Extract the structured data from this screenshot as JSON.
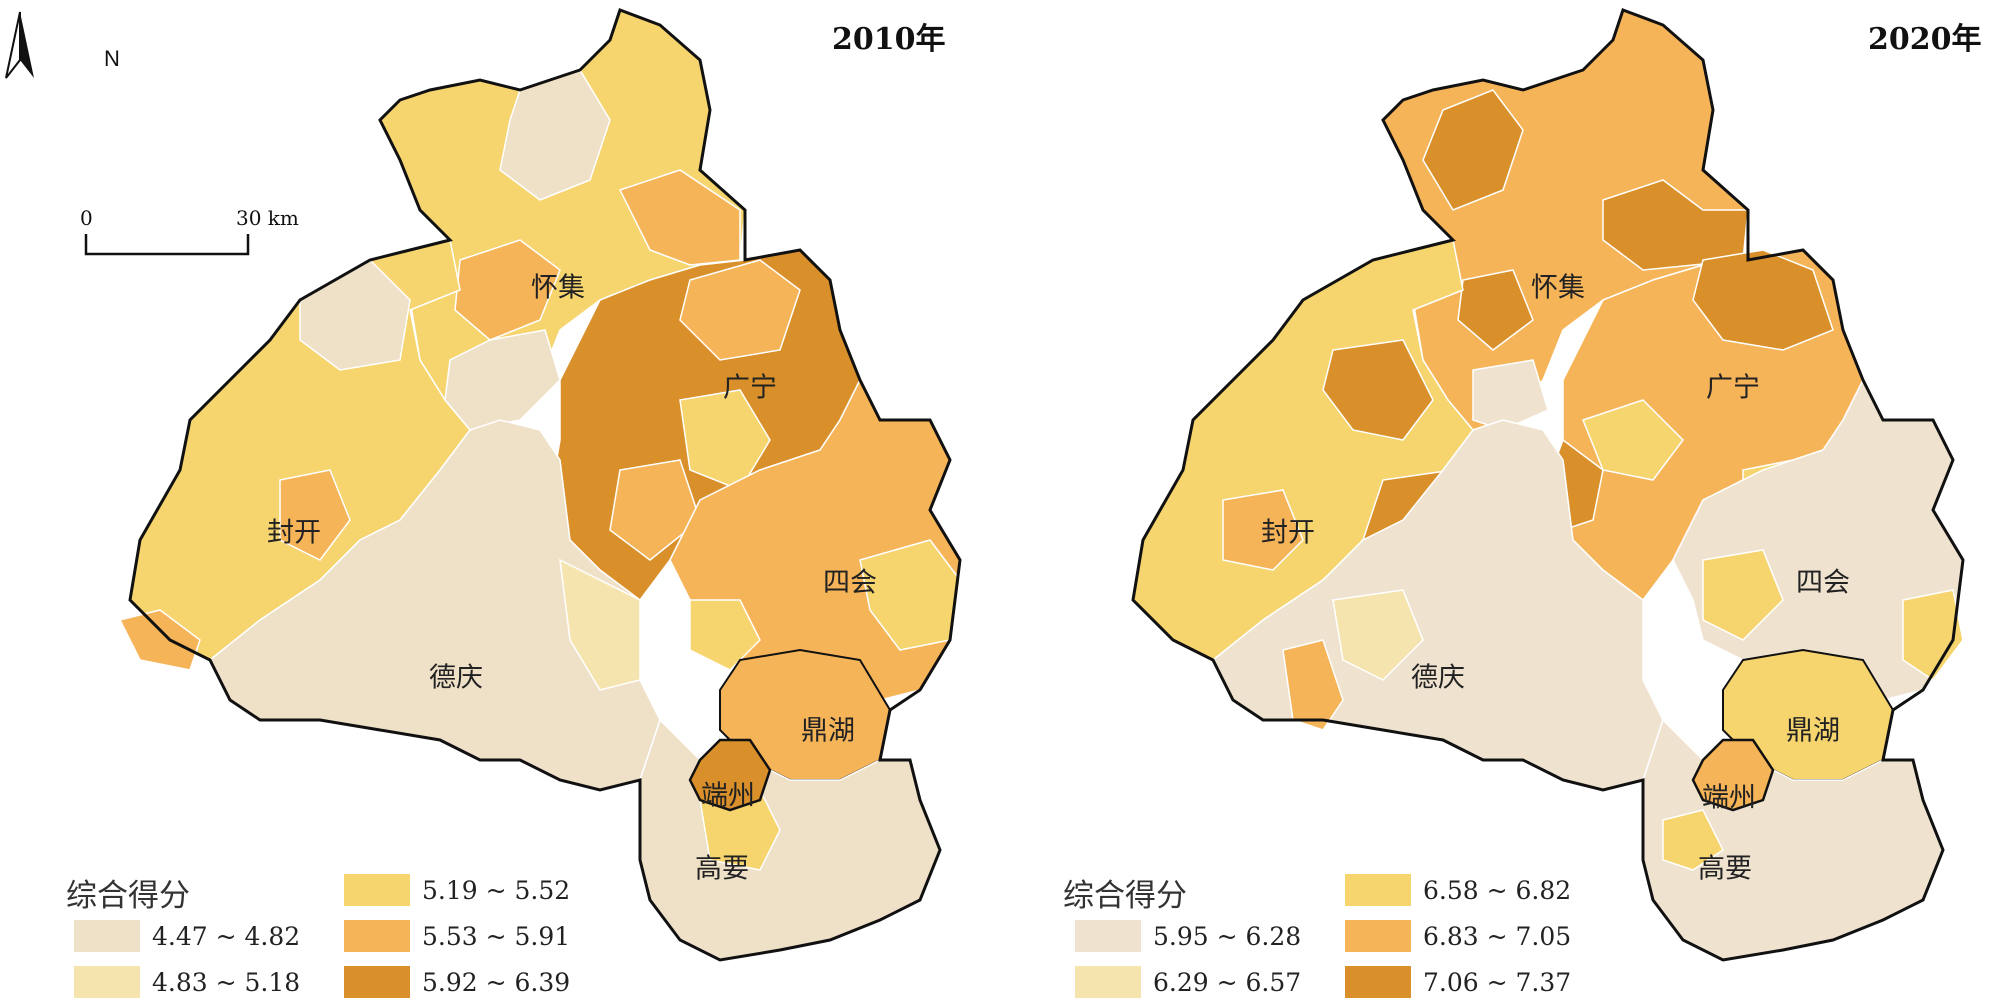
{
  "maps": [
    {
      "year_title": "2010年",
      "legend": {
        "title": "综合得分",
        "classes": [
          {
            "label": "4.47 ~ 4.82",
            "color": "#efe0c8"
          },
          {
            "label": "4.83 ~ 5.18",
            "color": "#f5e4ae"
          },
          {
            "label": "5.19 ~ 5.52",
            "color": "#f6d46e"
          },
          {
            "label": "5.53 ~ 5.91",
            "color": "#f6b459"
          },
          {
            "label": "5.92 ~ 6.39",
            "color": "#d9902a"
          }
        ]
      },
      "places": [
        "怀集",
        "广宁",
        "封开",
        "四会",
        "德庆",
        "鼎湖",
        "端州",
        "高要"
      ]
    },
    {
      "year_title": "2020年",
      "legend": {
        "title": "综合得分",
        "classes": [
          {
            "label": "5.95 ~ 6.28",
            "color": "#efe3d0"
          },
          {
            "label": "6.29 ~ 6.57",
            "color": "#f5e4ae"
          },
          {
            "label": "6.58 ~ 6.82",
            "color": "#f6d46e"
          },
          {
            "label": "6.83 ~ 7.05",
            "color": "#f6b459"
          },
          {
            "label": "7.06 ~ 7.37",
            "color": "#d9902a"
          }
        ]
      },
      "places": [
        "怀集",
        "广宁",
        "封开",
        "四会",
        "德庆",
        "鼎湖",
        "端州",
        "高要"
      ]
    }
  ],
  "north_arrow": "N",
  "scale_bar": {
    "zero": "0",
    "max": "30 km"
  },
  "icons": [
    "north-arrow-icon",
    "scale-bar-icon"
  ]
}
